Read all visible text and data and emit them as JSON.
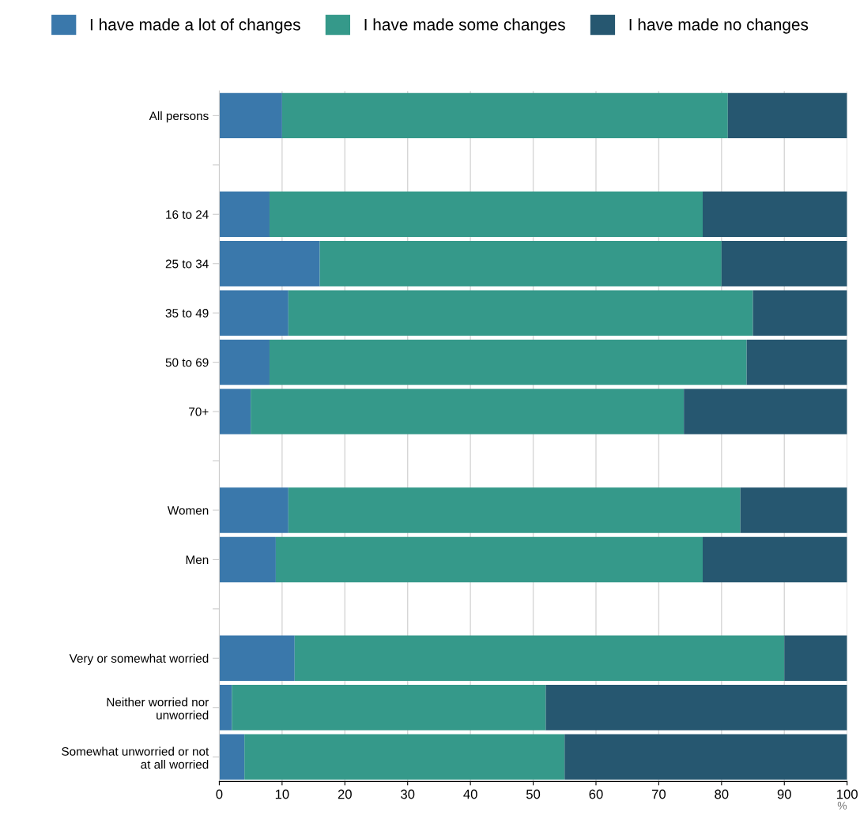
{
  "chart_data": {
    "type": "bar",
    "orientation": "horizontal",
    "stacked": true,
    "categories": [
      "All persons",
      null,
      "16 to 24",
      "25 to 34",
      "35 to 49",
      "50 to 69",
      "70+",
      null,
      "Women",
      "Men",
      null,
      "Very or somewhat worried",
      "Neither worried nor\nunworried",
      "Somewhat unworried or not\nat all worried"
    ],
    "series": [
      {
        "name": "I have made a lot of changes",
        "color": "#3a78ab",
        "values": [
          10,
          null,
          8,
          16,
          11,
          8,
          5,
          null,
          11,
          9,
          null,
          12,
          2,
          4
        ]
      },
      {
        "name": "I have made some changes",
        "color": "#35998a",
        "values": [
          71,
          null,
          69,
          64,
          74,
          76,
          69,
          null,
          72,
          68,
          null,
          78,
          50,
          51
        ]
      },
      {
        "name": "I have made no changes",
        "color": "#265770",
        "values": [
          19,
          null,
          23,
          20,
          15,
          16,
          26,
          null,
          17,
          23,
          null,
          10,
          48,
          45
        ]
      }
    ],
    "xlabel": "%",
    "xlim": [
      0,
      100
    ],
    "xticks": [
      0,
      10,
      20,
      30,
      40,
      50,
      60,
      70,
      80,
      90,
      100
    ],
    "grid": "x",
    "legend": "top"
  }
}
